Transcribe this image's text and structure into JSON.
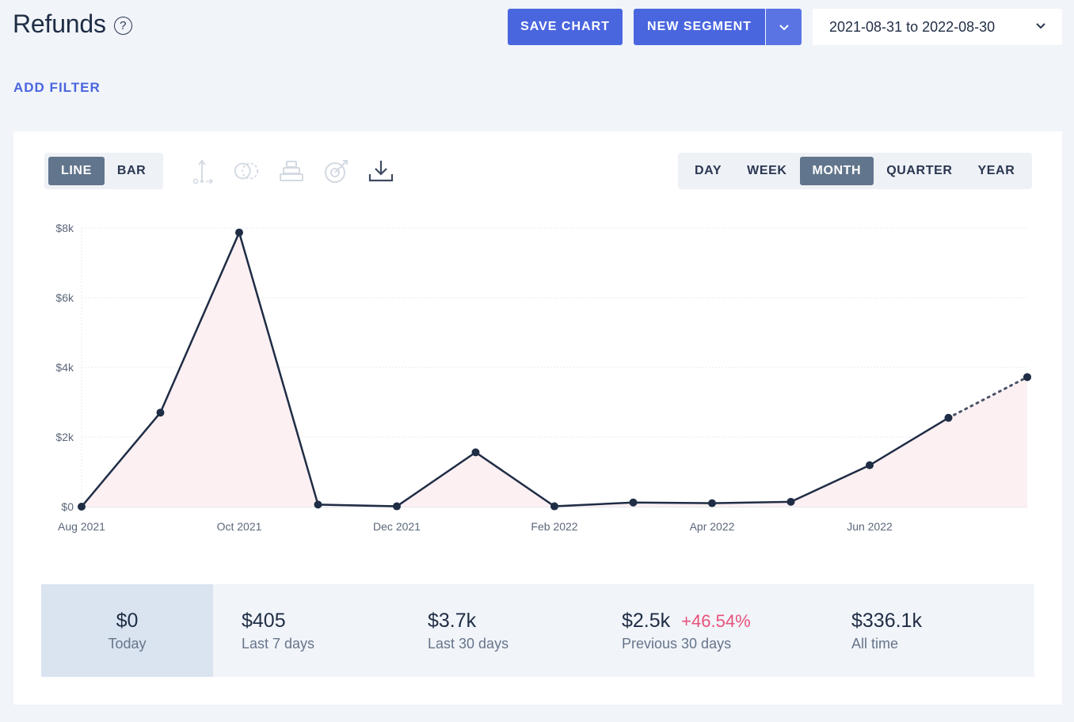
{
  "header": {
    "title": "Refunds",
    "help_glyph": "?",
    "save_chart": "SAVE CHART",
    "new_segment": "NEW SEGMENT",
    "date_range": "2021-08-31 to 2022-08-30"
  },
  "filters": {
    "add_filter": "ADD FILTER"
  },
  "chart_controls": {
    "types": [
      "LINE",
      "BAR"
    ],
    "active_type": "LINE",
    "ranges": [
      "DAY",
      "WEEK",
      "MONTH",
      "QUARTER",
      "YEAR"
    ],
    "active_range": "MONTH",
    "tool_icons": [
      "axis-icon",
      "compare-icon",
      "stack-icon",
      "goal-icon",
      "download-icon"
    ]
  },
  "colors": {
    "accent": "#4a66df",
    "line": "#1f2d45",
    "area": "#fdf0f3",
    "positive_change": "#e8527a"
  },
  "chart_data": {
    "type": "line",
    "x": [
      "Aug 2021",
      "Sep 2021",
      "Oct 2021",
      "Nov 2021",
      "Dec 2021",
      "Jan 2022",
      "Feb 2022",
      "Mar 2022",
      "Apr 2022",
      "May 2022",
      "Jun 2022",
      "Jul 2022",
      "Aug 2022"
    ],
    "series": [
      {
        "values": [
          0,
          2700,
          7870,
          60,
          10,
          1560,
          10,
          120,
          100,
          140,
          1190,
          2550,
          3720
        ]
      }
    ],
    "projected_from_index": 11,
    "x_tick_labels": [
      "Aug 2021",
      "Oct 2021",
      "Dec 2021",
      "Feb 2022",
      "Apr 2022",
      "Jun 2022"
    ],
    "y_tick_labels": [
      "$0",
      "$2k",
      "$4k",
      "$6k",
      "$8k"
    ],
    "y_ticks": [
      0,
      2000,
      4000,
      6000,
      8000
    ],
    "ylim": [
      0,
      8000
    ],
    "grid": true
  },
  "stats": [
    {
      "value": "$0",
      "label": "Today"
    },
    {
      "value": "$405",
      "label": "Last 7 days"
    },
    {
      "value": "$3.7k",
      "label": "Last 30 days"
    },
    {
      "value": "$2.5k",
      "label": "Previous 30 days",
      "change": "+46.54%"
    },
    {
      "value": "$336.1k",
      "label": "All time"
    }
  ]
}
